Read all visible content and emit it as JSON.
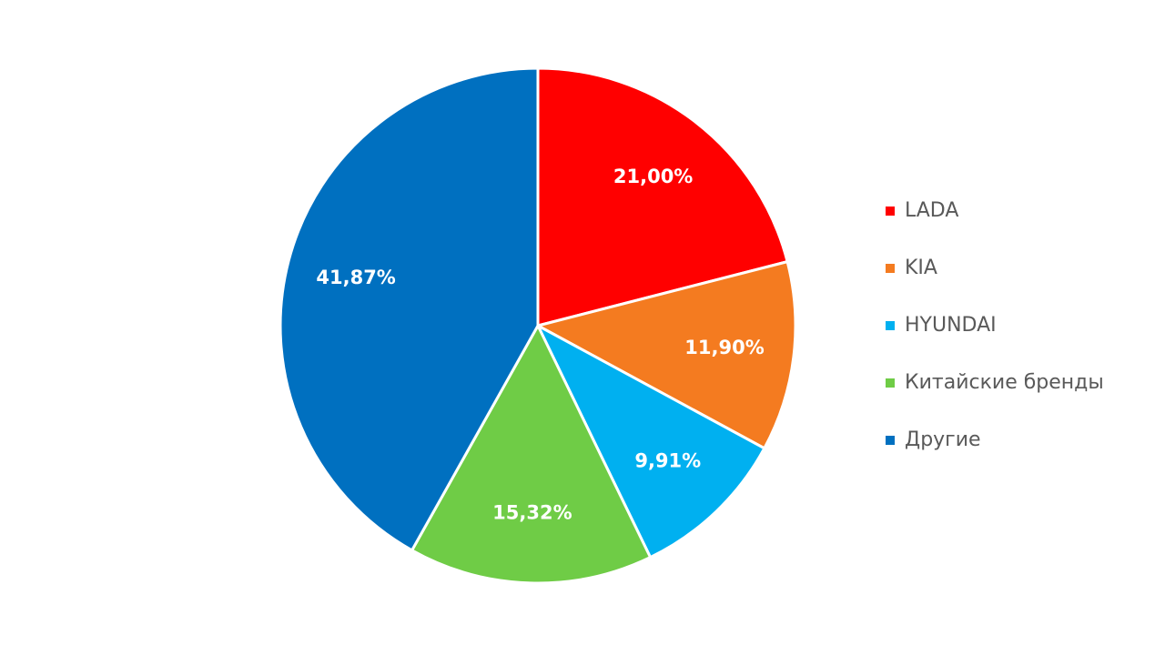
{
  "chart_data": {
    "type": "pie",
    "categories": [
      "LADA",
      "KIA",
      "HYUNDAI",
      "Китайские бренды",
      "Другие"
    ],
    "values": [
      21.0,
      11.9,
      9.91,
      15.32,
      41.87
    ],
    "value_labels": [
      "21,00%",
      "11,90%",
      "9,91%",
      "15,32%",
      "41,87%"
    ],
    "colors": [
      "#ff0000",
      "#f47b20",
      "#00b0f0",
      "#6fcc46",
      "#0070c0"
    ],
    "legend": "right"
  }
}
